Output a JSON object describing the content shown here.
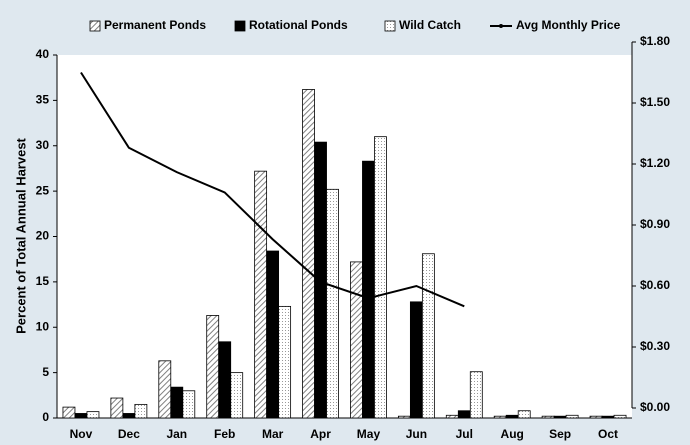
{
  "chart_data": {
    "type": "bar",
    "categories": [
      "Nov",
      "Dec",
      "Jan",
      "Feb",
      "Mar",
      "Apr",
      "May",
      "Jun",
      "Jul",
      "Aug",
      "Sep",
      "Oct"
    ],
    "y_label": "Percent of Total Annual Harvest",
    "series": [
      {
        "name": "Permanent Ponds",
        "color": "#808080",
        "values": [
          1.2,
          2.2,
          6.3,
          11.3,
          27.2,
          36.2,
          17.2,
          0.2,
          0.3,
          0.2,
          0.2,
          0.2
        ]
      },
      {
        "name": "Rotational Ponds",
        "color": "#000000",
        "values": [
          0.5,
          0.5,
          3.4,
          8.4,
          18.4,
          30.4,
          28.3,
          12.8,
          0.8,
          0.3,
          0.2,
          0.2
        ]
      },
      {
        "name": "Wild Catch",
        "color": "#ffffff",
        "values": [
          0.7,
          1.5,
          3.0,
          5.0,
          12.3,
          25.2,
          31.0,
          18.1,
          5.1,
          0.8,
          0.3,
          0.3
        ]
      },
      {
        "name": "Avg Monthly Price",
        "type": "line",
        "axis": "y2",
        "color": "#000000",
        "values": [
          1.65,
          1.28,
          1.16,
          1.06,
          0.83,
          0.62,
          0.54,
          0.6,
          0.5,
          null,
          null,
          null
        ]
      }
    ],
    "ylim": [
      0,
      40
    ],
    "yticks": [
      0,
      5,
      10,
      15,
      20,
      25,
      30,
      35,
      40
    ],
    "y2lim": [
      0,
      1.8
    ],
    "y2ticks": [
      {
        "value": 0,
        "label": "$0.00"
      },
      {
        "value": 0.3,
        "label": "$0.30"
      },
      {
        "value": 0.6,
        "label": "$0.60"
      },
      {
        "value": 0.9,
        "label": "$0.90"
      },
      {
        "value": 1.2,
        "label": "$1.20"
      },
      {
        "value": 1.5,
        "label": "$1.50"
      },
      {
        "value": 1.8,
        "label": "$1.80"
      }
    ]
  }
}
